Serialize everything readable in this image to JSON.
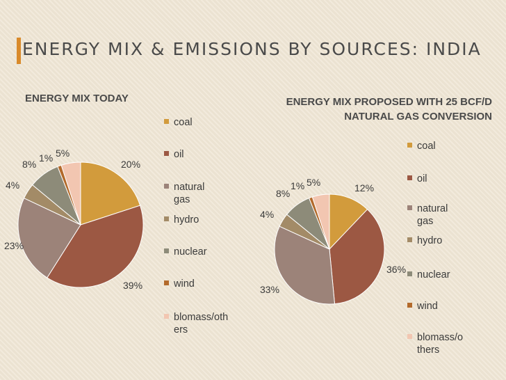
{
  "slide": {
    "title": "ENERGY MIX & EMISSIONS BY SOURCES: INDIA"
  },
  "colors": {
    "coal": "#d29b3c",
    "oil": "#9c5843",
    "natural_gas": "#9c8379",
    "hydro": "#a38b67",
    "nuclear": "#8d8b79",
    "wind": "#b36a2b",
    "biomass": "#f2c6b1"
  },
  "chart_data": [
    {
      "type": "pie",
      "title": "ENERGY MIX TODAY",
      "legend_position": "right",
      "legend_labels": [
        "coal",
        "oil",
        "natural gas",
        "hydro",
        "nuclear",
        "wind",
        "blomass/oth\ners"
      ],
      "categories": [
        "coal",
        "oil",
        "natural gas",
        "hydro",
        "nuclear",
        "wind",
        "blomass/others"
      ],
      "values": [
        20,
        39,
        23,
        4,
        8,
        1,
        5
      ],
      "data_labels": [
        "20%",
        "39%",
        "23%",
        "4%",
        "8%",
        "1%",
        "5%"
      ]
    },
    {
      "type": "pie",
      "title": "ENERGY MIX PROPOSED  WITH 25 BCF/D NATURAL GAS  CONVERSION",
      "legend_position": "right",
      "legend_labels": [
        "coal",
        "oil",
        "natural\ngas",
        "hydro",
        "nuclear",
        "wind",
        "blomass/o\nthers"
      ],
      "categories": [
        "coal",
        "oil",
        "natural gas",
        "hydro",
        "nuclear",
        "wind",
        "blomass/others"
      ],
      "values": [
        12,
        36,
        33,
        4,
        8,
        1,
        5
      ],
      "data_labels": [
        "12%",
        "36%",
        "33%",
        "4%",
        "8%",
        "1%",
        "5%"
      ]
    }
  ]
}
